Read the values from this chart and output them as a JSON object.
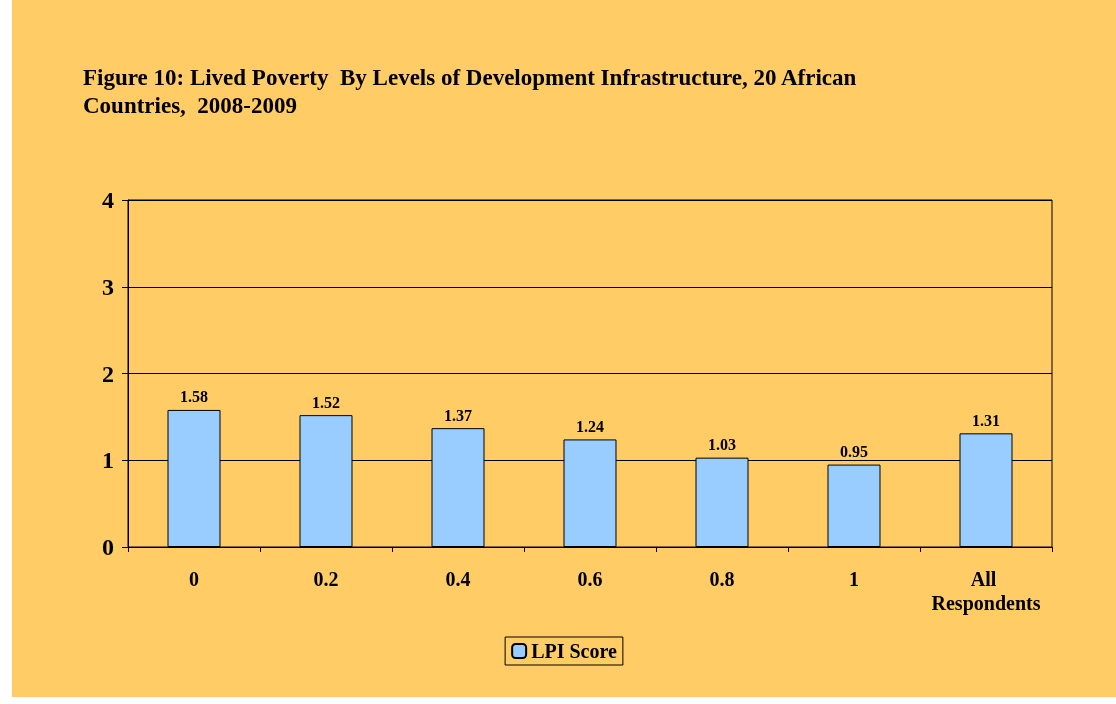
{
  "chart_data": {
    "type": "bar",
    "title": "Figure 10: Lived Poverty  By Levels of Development Infrastructure, 20 African Countries,  2008-2009",
    "categories": [
      "0",
      "0.2",
      "0.4",
      "0.6",
      "0.8",
      "1",
      "All Respondents"
    ],
    "series": [
      {
        "name": "LPI Score",
        "color": "#99ccff",
        "values": [
          1.58,
          1.52,
          1.37,
          1.24,
          1.03,
          0.95,
          1.31
        ]
      }
    ],
    "ylim": [
      0,
      4
    ],
    "yticks": [
      0,
      1,
      2,
      3,
      4
    ],
    "grid": "y",
    "legend": "bottom",
    "data_labels": true
  }
}
